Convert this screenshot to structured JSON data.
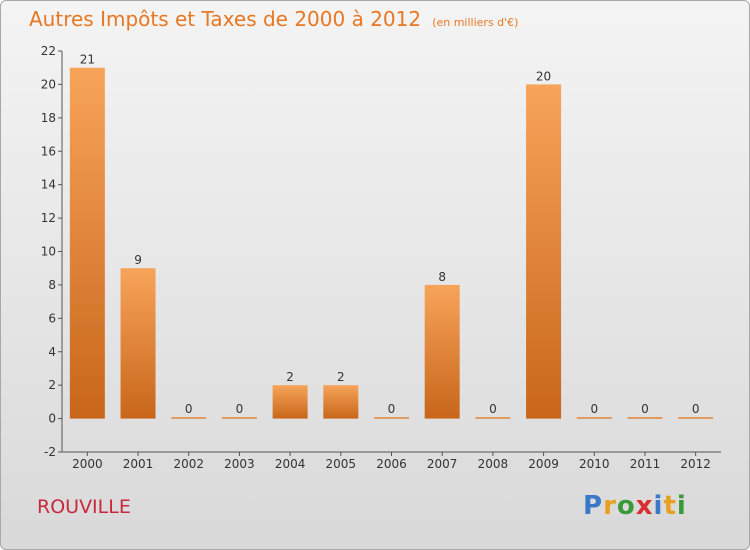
{
  "chart_data": {
    "type": "bar",
    "title": "Autres Impôts et Taxes de 2000 à 2012",
    "subtitle": "(en milliers d'€)",
    "categories": [
      "2000",
      "2001",
      "2002",
      "2003",
      "2004",
      "2005",
      "2006",
      "2007",
      "2008",
      "2009",
      "2010",
      "2011",
      "2012"
    ],
    "values": [
      21,
      9,
      0,
      0,
      2,
      2,
      0,
      8,
      0,
      20,
      0,
      0,
      0
    ],
    "ylim": [
      -2,
      22
    ],
    "yticks": [
      -2,
      0,
      2,
      4,
      6,
      8,
      10,
      12,
      14,
      16,
      18,
      20,
      22
    ],
    "grid": false,
    "bar_color": "#f0923a"
  },
  "footer": {
    "commune": "ROUVILLE",
    "logo": [
      "P",
      "r",
      "o",
      "x",
      "i",
      "t",
      "i"
    ]
  }
}
